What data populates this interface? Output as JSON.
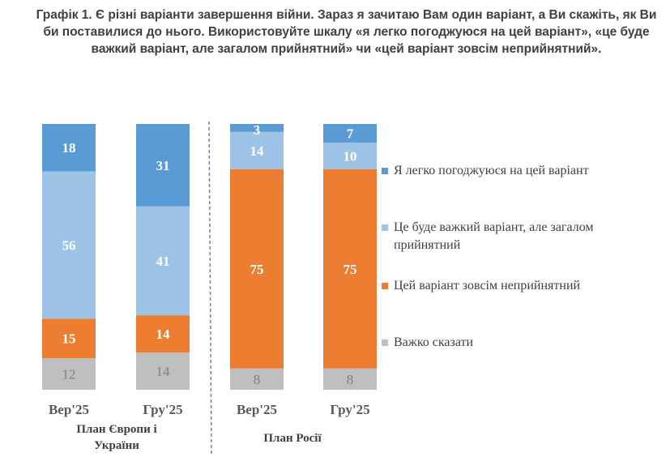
{
  "title": "Графік 1. Є різні варіанти завершення війни. Зараз я зачитаю Вам один варіант, а Ви скажіть, як Ви би поставилися до нього. Використовуйте шкалу «я легко погоджуюся на цей варіант», «це буде важкий варіант, але загалом прийнятний» чи «цей варіант зовсім неприйнятний».",
  "chart_data": {
    "type": "bar",
    "stacked": true,
    "categories": [
      "Вер'25",
      "Гру'25",
      "Вер'25",
      "Гру'25"
    ],
    "groups": [
      {
        "label": "План Європи і України",
        "categories": [
          0,
          1
        ]
      },
      {
        "label": "План Росії",
        "categories": [
          2,
          3
        ]
      }
    ],
    "series": [
      {
        "name": "Важко сказати",
        "color": "#bfbfbf",
        "label_color": "#7f7f7f",
        "values": [
          12,
          14,
          8,
          8
        ]
      },
      {
        "name": "Цей варіант зовсім неприйнятний",
        "color": "#ed7d31",
        "label_color": "#ffffff",
        "values": [
          15,
          14,
          75,
          75
        ]
      },
      {
        "name": "Це буде важкий варіант, але загалом прийнятний",
        "color": "#9dc3e6",
        "label_color": "#ffffff",
        "values": [
          56,
          41,
          14,
          10
        ]
      },
      {
        "name": "Я легко погоджуюся на цей варіант",
        "color": "#5b9bd5",
        "label_color": "#ffffff",
        "values": [
          18,
          31,
          3,
          7
        ]
      }
    ],
    "legend_position": "right",
    "legend_order": [
      3,
      2,
      1,
      0
    ]
  }
}
